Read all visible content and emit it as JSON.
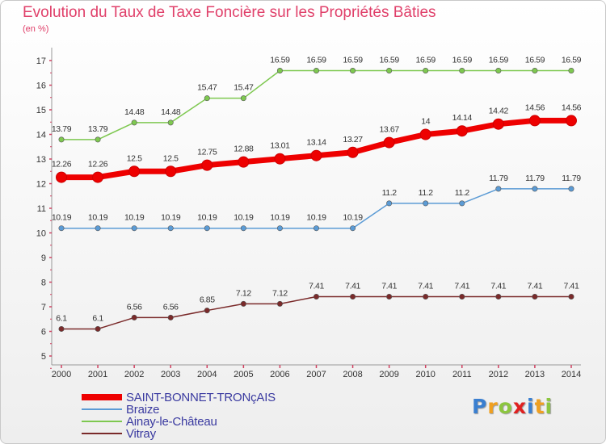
{
  "chart_data": {
    "type": "line",
    "title": "Evolution du Taux de Taxe Foncière sur les Propriétés Bâties",
    "subtitle": "(en %)",
    "categories": [
      "2000",
      "2001",
      "2002",
      "2003",
      "2004",
      "2005",
      "2006",
      "2007",
      "2008",
      "2009",
      "2010",
      "2011",
      "2012",
      "2013",
      "2014"
    ],
    "ylim": [
      5,
      17
    ],
    "yticks": [
      "5",
      "6",
      "7",
      "8",
      "9",
      "10",
      "11",
      "12",
      "13",
      "14",
      "15",
      "16",
      "17"
    ],
    "grid": false,
    "legend_position": "bottom-left",
    "series": [
      {
        "name": "SAINT-BONNET-TRONçAIS",
        "color": "#ee0000",
        "values": [
          12.26,
          12.26,
          12.5,
          12.5,
          12.75,
          12.88,
          13.01,
          13.14,
          13.27,
          13.67,
          14,
          14.14,
          14.42,
          14.56,
          14.56
        ],
        "labels": [
          "12.26",
          "12.26",
          "12.5",
          "12.5",
          "12.75",
          "12.88",
          "13.01",
          "13.14",
          "13.27",
          "13.67",
          "14",
          "14.14",
          "14.42",
          "14.56",
          "14.56"
        ]
      },
      {
        "name": "Braize",
        "color": "#5b9bd5",
        "values": [
          10.19,
          10.19,
          10.19,
          10.19,
          10.19,
          10.19,
          10.19,
          10.19,
          10.19,
          11.2,
          11.2,
          11.2,
          11.79,
          11.79,
          11.79
        ],
        "labels": [
          "10.19",
          "10.19",
          "10.19",
          "10.19",
          "10.19",
          "10.19",
          "10.19",
          "10.19",
          "10.19",
          "11.2",
          "11.2",
          "11.2",
          "11.79",
          "11.79",
          "11.79"
        ]
      },
      {
        "name": "Ainay-le-Château",
        "color": "#7ec850",
        "values": [
          13.79,
          13.79,
          14.48,
          14.48,
          15.47,
          15.47,
          16.59,
          16.59,
          16.59,
          16.59,
          16.59,
          16.59,
          16.59,
          16.59,
          16.59
        ],
        "labels": [
          "13.79",
          "13.79",
          "14.48",
          "14.48",
          "15.47",
          "15.47",
          "16.59",
          "16.59",
          "16.59",
          "16.59",
          "16.59",
          "16.59",
          "16.59",
          "16.59",
          "16.59"
        ]
      },
      {
        "name": "Vitray",
        "color": "#7a2a2a",
        "values": [
          6.1,
          6.1,
          6.56,
          6.56,
          6.85,
          7.12,
          7.12,
          7.41,
          7.41,
          7.41,
          7.41,
          7.41,
          7.41,
          7.41,
          7.41
        ],
        "labels": [
          "6.1",
          "6.1",
          "6.56",
          "6.56",
          "6.85",
          "7.12",
          "7.12",
          "7.41",
          "7.41",
          "7.41",
          "7.41",
          "7.41",
          "7.41",
          "7.41",
          "7.41"
        ]
      }
    ]
  },
  "logo": {
    "letters": [
      "P",
      "r",
      "o",
      "x",
      "i",
      "t",
      "i"
    ],
    "colors": [
      "#3a7fd0",
      "#f0a020",
      "#8cc63f",
      "#e02020",
      "#3a7fd0",
      "#f0a020",
      "#8cc63f"
    ]
  }
}
